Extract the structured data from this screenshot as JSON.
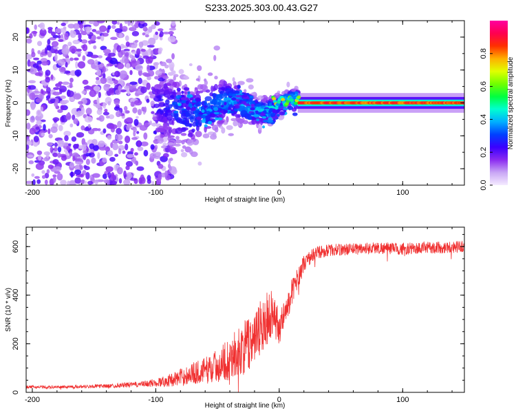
{
  "title": "S233.2025.303.00.43.G27",
  "chart_data": [
    {
      "type": "heatmap",
      "xlabel": "Height of straight line (km)",
      "ylabel": "Frequency (Hz)",
      "xlim": [
        -205,
        150
      ],
      "ylim": [
        -25,
        25
      ],
      "xticks": [
        -200,
        -100,
        0,
        100
      ],
      "xtick_labels": [
        "-200",
        "-100",
        "0",
        "100"
      ],
      "yticks": [
        -20,
        -10,
        0,
        10,
        20
      ],
      "ytick_labels": [
        "-20",
        "-10",
        "0",
        "10",
        "20"
      ],
      "colorbar": {
        "label": "Normalized spectral amplitude",
        "range": [
          0,
          1
        ],
        "ticks": [
          0.0,
          0.2,
          0.4,
          0.6,
          0.8
        ],
        "tick_labels": [
          "0.0",
          "0.2",
          "0.4",
          "0.6",
          "0.8"
        ],
        "colors": [
          "#f5ebff",
          "#c9a6f5",
          "#8b2cf0",
          "#3a00ff",
          "#0040ff",
          "#00b0ff",
          "#00ffd0",
          "#00ff40",
          "#70ff00",
          "#e0ff00",
          "#ffb000",
          "#ff3000",
          "#ff0050",
          "#ff00a0"
        ]
      },
      "features": {
        "noise_region_x": [
          -205,
          -100
        ],
        "transition_region_x": [
          -100,
          15
        ],
        "stable_tone_x": [
          15,
          150
        ],
        "stable_tone_freq_hz": 0,
        "stable_tone_amplitude": 0.9
      }
    },
    {
      "type": "line",
      "xlabel": "Height of straight line (km)",
      "ylabel": "SNR (10 * v/v)",
      "xlim": [
        -205,
        150
      ],
      "ylim": [
        0,
        680
      ],
      "xticks": [
        -200,
        -100,
        0,
        100
      ],
      "xtick_labels": [
        "-200",
        "-100",
        "0",
        "100"
      ],
      "yticks": [
        0,
        200,
        400,
        600
      ],
      "ytick_labels": [
        "0",
        "200",
        "400",
        "600"
      ],
      "color": "#f03030",
      "series": [
        {
          "name": "SNR",
          "x": [
            -205,
            -180,
            -160,
            -140,
            -125,
            -110,
            -100,
            -90,
            -80,
            -70,
            -60,
            -50,
            -40,
            -30,
            -20,
            -15,
            -10,
            -5,
            0,
            5,
            10,
            15,
            20,
            25,
            30,
            40,
            60,
            80,
            100,
            120,
            150
          ],
          "y": [
            22,
            22,
            24,
            26,
            30,
            34,
            40,
            48,
            62,
            78,
            90,
            110,
            140,
            175,
            220,
            260,
            300,
            340,
            260,
            330,
            410,
            470,
            530,
            555,
            575,
            585,
            590,
            595,
            590,
            595,
            600
          ],
          "noise": [
            6,
            6,
            7,
            8,
            10,
            12,
            18,
            25,
            35,
            45,
            55,
            70,
            90,
            110,
            120,
            120,
            110,
            100,
            70,
            65,
            55,
            45,
            35,
            30,
            28,
            25,
            25,
            25,
            25,
            25,
            25
          ]
        }
      ]
    }
  ]
}
